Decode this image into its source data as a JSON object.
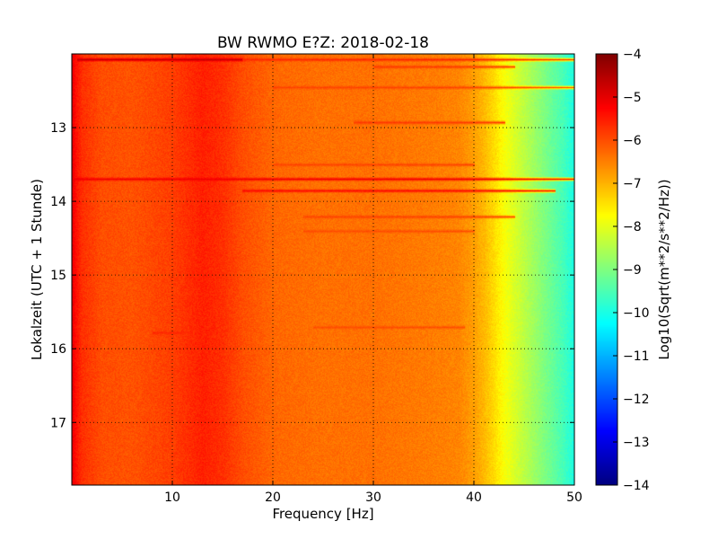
{
  "chart_data": {
    "type": "heatmap",
    "title": "BW RWMO E?Z: 2018-02-18",
    "xlabel": "Frequency [Hz]",
    "ylabel": "Lokalzeit (UTC + 1 Stunde)",
    "colorbar_label": "Log10(Sqrt(m**2/s**2/Hz))",
    "xlim": [
      0,
      50
    ],
    "ylim": [
      12.0,
      17.85
    ],
    "y_axis_inverted": true,
    "x_ticks": [
      10,
      20,
      30,
      40,
      50
    ],
    "x_tick_labels": [
      "10",
      "20",
      "30",
      "40",
      "50"
    ],
    "y_ticks": [
      13,
      14,
      15,
      16,
      17
    ],
    "y_tick_labels": [
      "13",
      "14",
      "15",
      "16",
      "17"
    ],
    "colorbar_range": [
      -14,
      -4
    ],
    "colorbar_ticks": [
      -4,
      -5,
      -6,
      -7,
      -8,
      -9,
      -10,
      -11,
      -12,
      -13,
      -14
    ],
    "colorbar_tick_labels": [
      "−4",
      "−5",
      "−6",
      "−7",
      "−8",
      "−9",
      "−10",
      "−11",
      "−12",
      "−13",
      "−14"
    ],
    "colormap": "jet",
    "grid": true,
    "spectrum_profile": {
      "frequency_hz": [
        0,
        0.3,
        1,
        3,
        6,
        10,
        13,
        15,
        17,
        20,
        25,
        30,
        35,
        37,
        38.5,
        40,
        41,
        42,
        43,
        44,
        45,
        46,
        47,
        48,
        49,
        50
      ],
      "log10_amplitude": [
        -4.9,
        -5.3,
        -5.7,
        -6.0,
        -6.05,
        -5.85,
        -5.55,
        -5.7,
        -6.0,
        -6.25,
        -6.35,
        -6.35,
        -6.45,
        -6.5,
        -6.55,
        -6.8,
        -7.05,
        -7.4,
        -7.8,
        -8.1,
        -8.4,
        -8.7,
        -9.0,
        -9.3,
        -9.6,
        -10.0
      ]
    },
    "horizontal_bands": [
      {
        "time_h": 12.07,
        "f_start": 0.5,
        "f_end": 17,
        "log10_amplitude": -4.6
      },
      {
        "time_h": 12.07,
        "f_start": 17,
        "f_end": 50,
        "log10_amplitude": -5.6
      },
      {
        "time_h": 12.17,
        "f_start": 30,
        "f_end": 44,
        "log10_amplitude": -5.8
      },
      {
        "time_h": 12.45,
        "f_start": 20,
        "f_end": 50,
        "log10_amplitude": -5.9
      },
      {
        "time_h": 12.93,
        "f_start": 28,
        "f_end": 43,
        "log10_amplitude": -5.8
      },
      {
        "time_h": 13.5,
        "f_start": 20,
        "f_end": 40,
        "log10_amplitude": -5.9
      },
      {
        "time_h": 13.7,
        "f_start": 0,
        "f_end": 50,
        "log10_amplitude": -5.1
      },
      {
        "time_h": 13.85,
        "f_start": 17,
        "f_end": 48,
        "log10_amplitude": -5.3
      },
      {
        "time_h": 14.2,
        "f_start": 23,
        "f_end": 44,
        "log10_amplitude": -5.9
      },
      {
        "time_h": 14.4,
        "f_start": 23,
        "f_end": 40,
        "log10_amplitude": -6.0
      },
      {
        "time_h": 15.7,
        "f_start": 24,
        "f_end": 39,
        "log10_amplitude": -6.0
      },
      {
        "time_h": 15.78,
        "f_start": 8,
        "f_end": 12,
        "log10_amplitude": -5.6
      }
    ]
  }
}
